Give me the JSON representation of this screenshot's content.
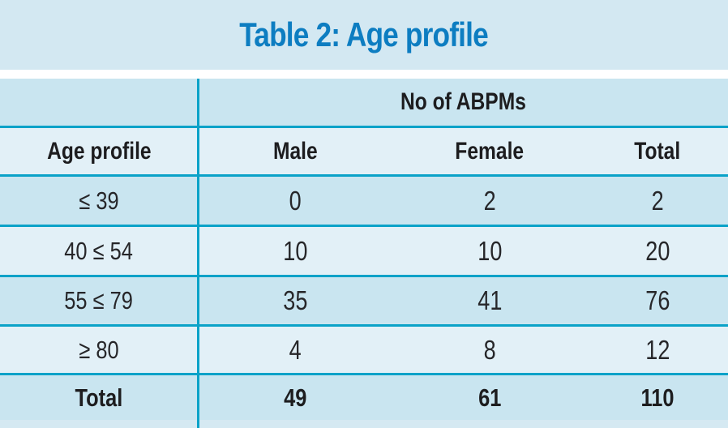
{
  "title": "Table 2: Age profile",
  "colors": {
    "title_text": "#0d7dc1",
    "band_bg": "#d3e8f2",
    "row_dark": "#c9e5f0",
    "row_light": "#e2f0f7",
    "rule_cyan": "#0aa2c8",
    "text_dark": "#1d1d1f"
  },
  "table": {
    "group_header": "No of ABPMs",
    "columns": [
      "Age profile",
      "Male",
      "Female",
      "Total"
    ],
    "rows": [
      {
        "label": "≤ 39",
        "male": "0",
        "female": "2",
        "total": "2"
      },
      {
        "label": "40 ≤ 54",
        "male": "10",
        "female": "10",
        "total": "20"
      },
      {
        "label": "55 ≤ 79",
        "male": "35",
        "female": "41",
        "total": "76"
      },
      {
        "label": "≥ 80",
        "male": "4",
        "female": "8",
        "total": "12"
      }
    ],
    "footer": {
      "label": "Total",
      "male": "49",
      "female": "61",
      "total": "110"
    }
  }
}
